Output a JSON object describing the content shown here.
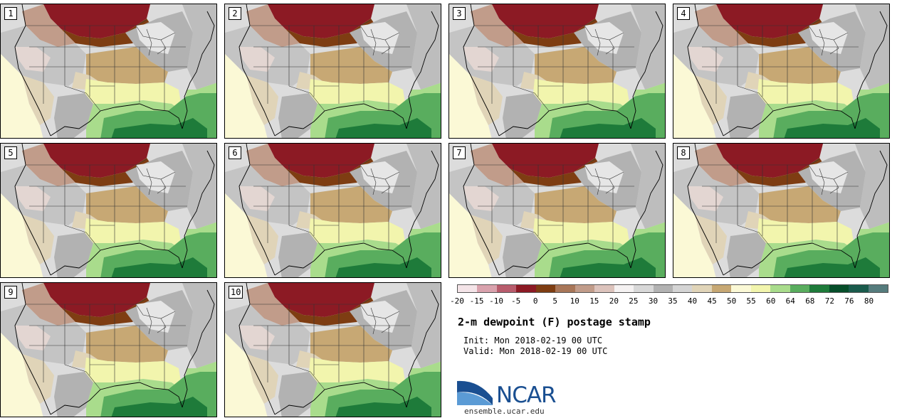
{
  "panels": [
    {
      "label": "1"
    },
    {
      "label": "2"
    },
    {
      "label": "3"
    },
    {
      "label": "4"
    },
    {
      "label": "5"
    },
    {
      "label": "6"
    },
    {
      "label": "7"
    },
    {
      "label": "8"
    },
    {
      "label": "9"
    },
    {
      "label": "10"
    }
  ],
  "colorbar": {
    "colors": [
      "#f4e4e8",
      "#d9a2ad",
      "#b85c6c",
      "#8c1a24",
      "#7e3d12",
      "#a87658",
      "#c19c8a",
      "#dcc3bc",
      "#f5f2f2",
      "#d8d8d8",
      "#b2b2b2",
      "#d4d4d4",
      "#e0d4b8",
      "#c7a874",
      "#fbf9d6",
      "#f2f5ad",
      "#a9dc8c",
      "#59ad5e",
      "#1e7b3a",
      "#064e2a",
      "#1a5b4c",
      "#557c7d"
    ],
    "ticks": [
      "-20",
      "-15",
      "-10",
      "-5",
      "0",
      "5",
      "10",
      "15",
      "20",
      "25",
      "30",
      "35",
      "40",
      "45",
      "50",
      "55",
      "60",
      "64",
      "68",
      "72",
      "76",
      "80"
    ]
  },
  "title": "2-m dewpoint (F) postage stamp",
  "init": "Init: Mon 2018-02-19 00 UTC",
  "valid": "Valid: Mon 2018-02-19 00 UTC",
  "logo": {
    "text": "NCAR",
    "url": "ensemble.ucar.edu",
    "color": "#1a4f91"
  },
  "map_colors": {
    "very_dry": "#8c1a24",
    "dry_brown": "#7e3d12",
    "light_brown": "#c19c8a",
    "gray_dark": "#a8a8a8",
    "gray_mid": "#c4c4c4",
    "gray_light": "#e6e6e6",
    "tan": "#c7a874",
    "light_tan": "#e0d4b8",
    "pale_yellow": "#fbf9d6",
    "yellow": "#f2f5ad",
    "light_green": "#a9dc8c",
    "green": "#59ad5e",
    "dark_green": "#1e7b3a"
  }
}
